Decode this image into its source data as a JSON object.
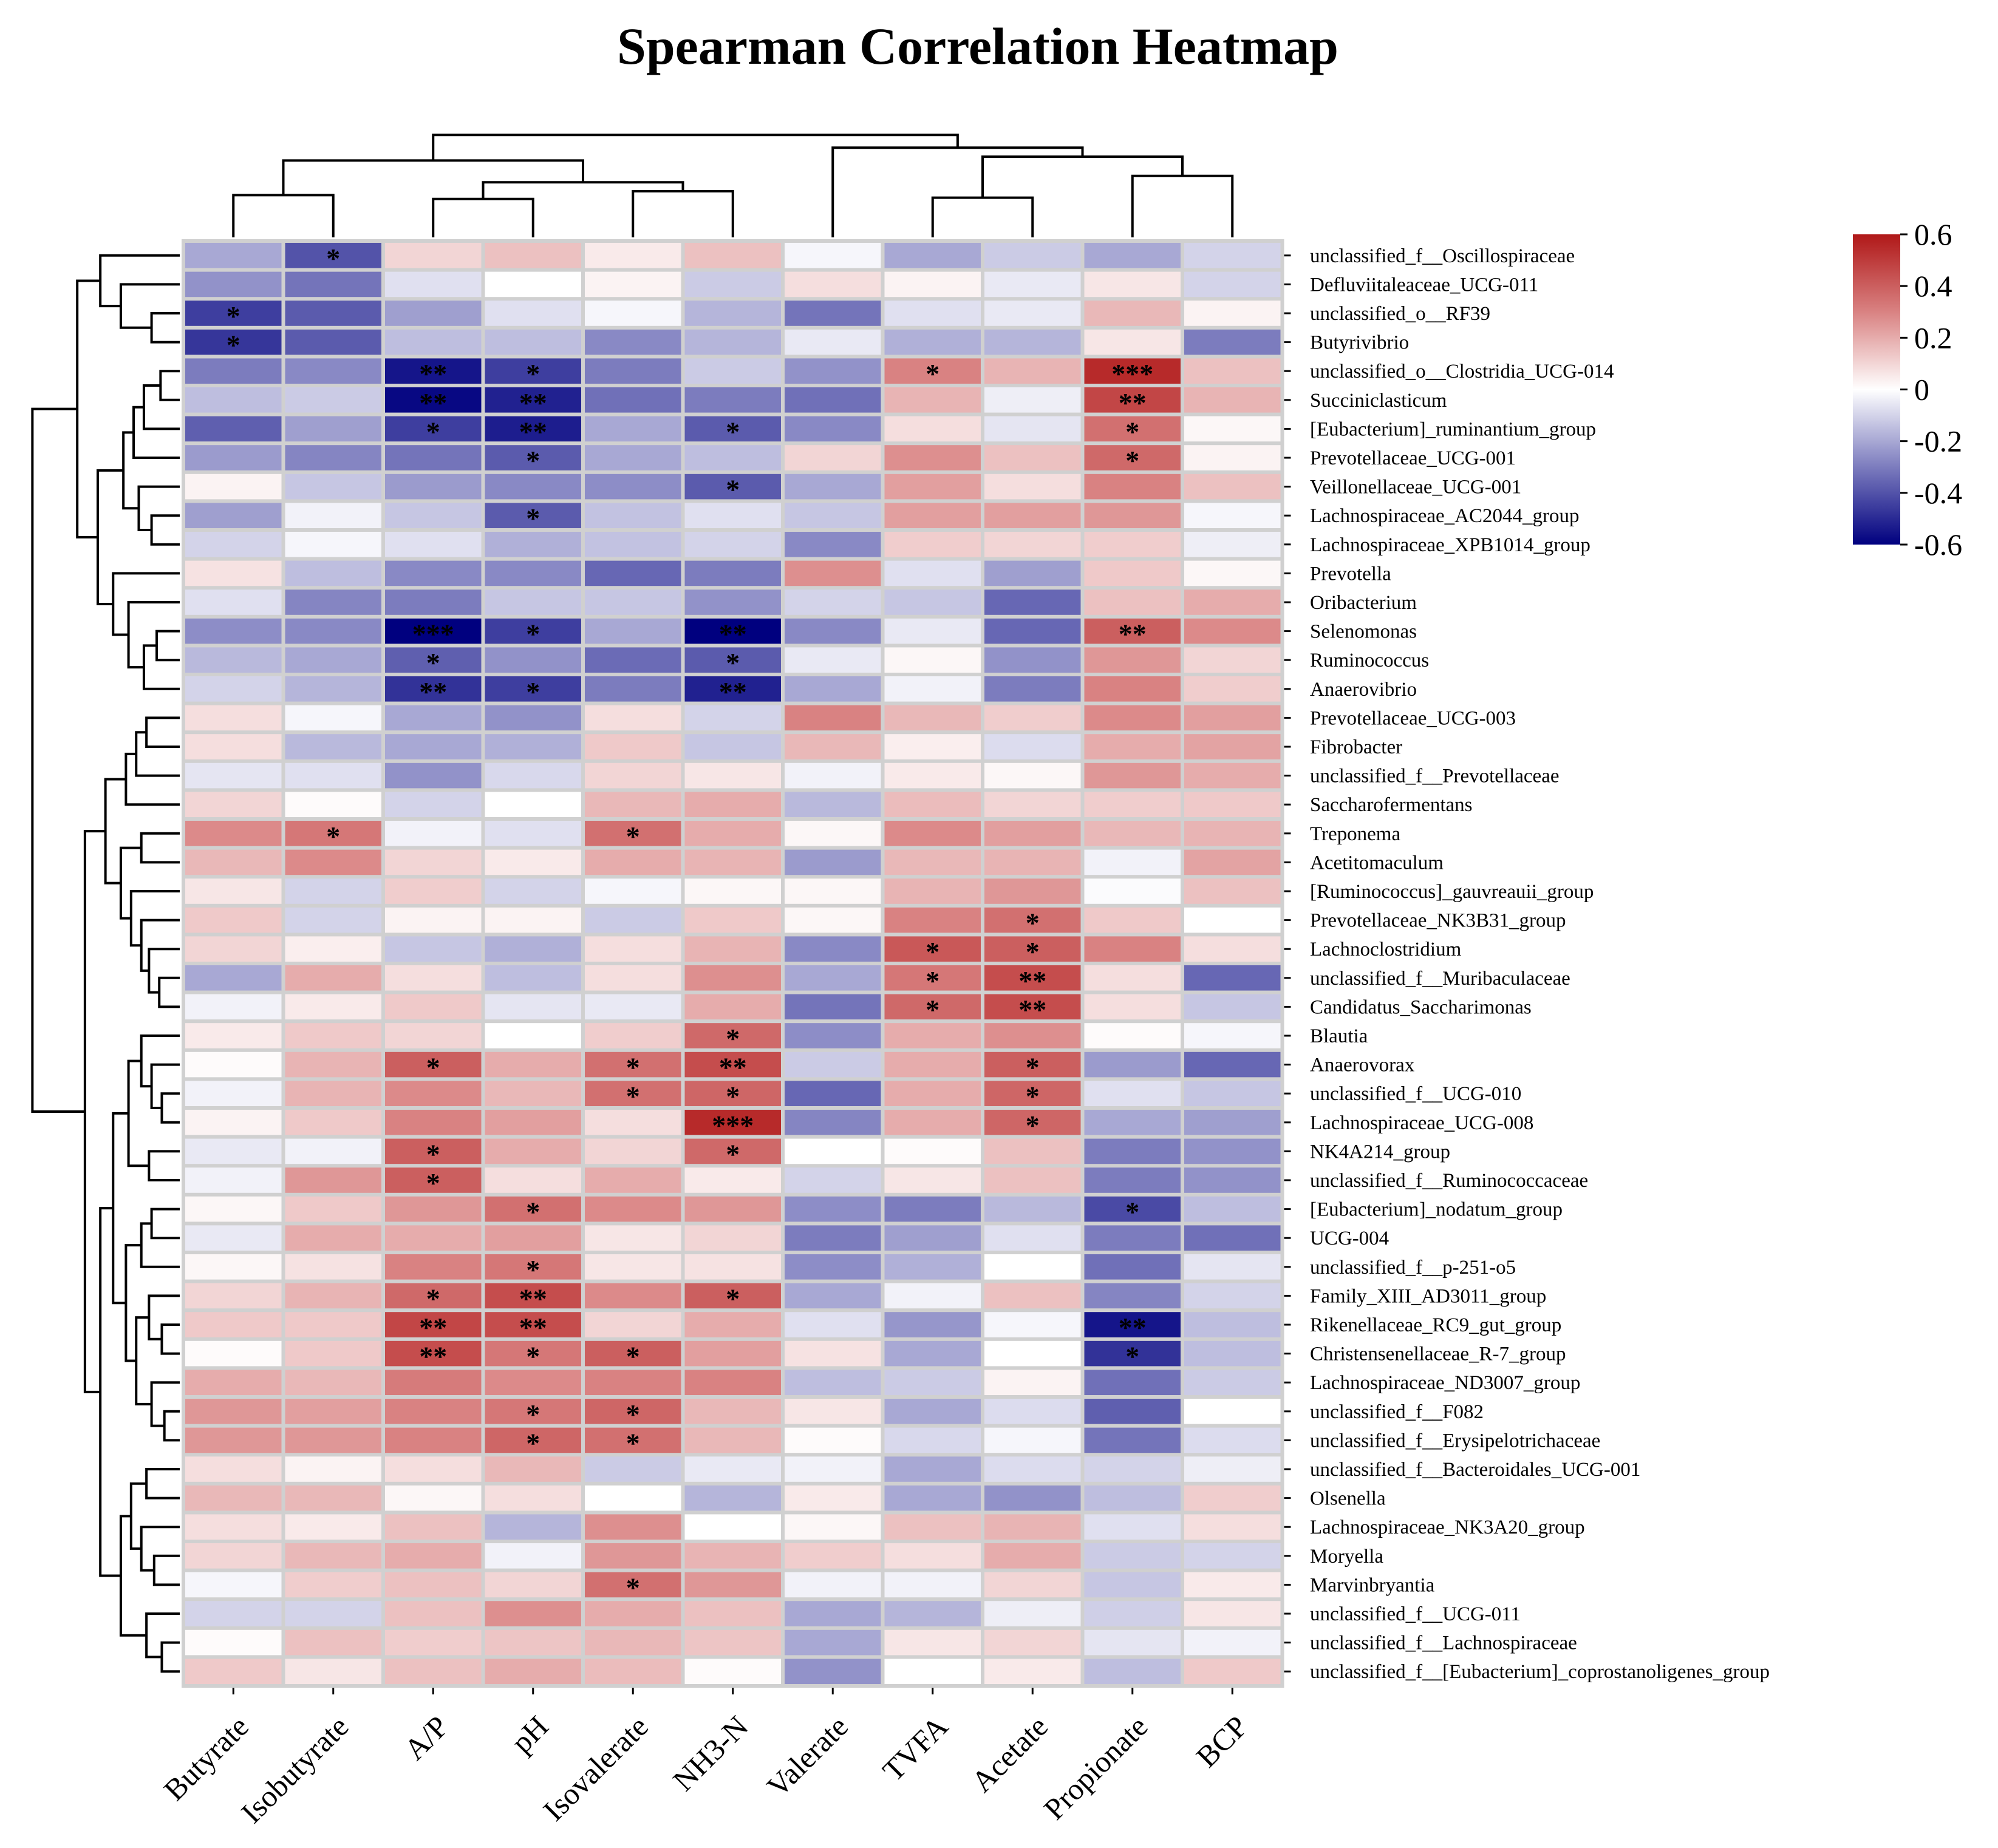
{
  "chart_data": {
    "type": "heatmap",
    "title": "Spearman Correlation Heatmap",
    "xlabel": "",
    "ylabel": "",
    "colorbar": {
      "range": [
        -0.6,
        0.6
      ],
      "ticks": [
        "0.6",
        "0.4",
        "0.2",
        "0",
        "-0.2",
        "-0.4",
        "-0.6"
      ],
      "tick_values": [
        0.6,
        0.4,
        0.2,
        0,
        -0.2,
        -0.4,
        -0.6
      ],
      "colors": {
        "low": "#00007f",
        "mid": "#ffffff",
        "high": "#b01818"
      }
    },
    "columns": [
      "Butyrate",
      "Isobutyrate",
      "A/P",
      "pH",
      "Isovalerate",
      "NH3-N",
      "Valerate",
      "TVFA",
      "Acetate",
      "Propionate",
      "BCP"
    ],
    "rows": [
      "unclassified_f__Oscillospiraceae",
      "Defluviitaleaceae_UCG-011",
      "unclassified_o__RF39",
      "Butyrivibrio",
      "unclassified_o__Clostridia_UCG-014",
      "Succiniclasticum",
      "[Eubacterium]_ruminantium_group",
      "Prevotellaceae_UCG-001",
      "Veillonellaceae_UCG-001",
      "Lachnospiraceae_AC2044_group",
      "Lachnospiraceae_XPB1014_group",
      "Prevotella",
      "Oribacterium",
      "Selenomonas",
      "Ruminococcus",
      "Anaerovibrio",
      "Prevotellaceae_UCG-003",
      "Fibrobacter",
      "unclassified_f__Prevotellaceae",
      "Saccharofermentans",
      "Treponema",
      "Acetitomaculum",
      "[Ruminococcus]_gauvreauii_group",
      "Prevotellaceae_NK3B31_group",
      "Lachnoclostridium",
      "unclassified_f__Muribaculaceae",
      "Candidatus_Saccharimonas",
      "Blautia",
      "Anaerovorax",
      "unclassified_f__UCG-010",
      "Lachnospiraceae_UCG-008",
      "NK4A214_group",
      "unclassified_f__Ruminococcaceae",
      "[Eubacterium]_nodatum_group",
      "UCG-004",
      "unclassified_f__p-251-o5",
      "Family_XIII_AD3011_group",
      "Rikenellaceae_RC9_gut_group",
      "Christensenellaceae_R-7_group",
      "Lachnospiraceae_ND3007_group",
      "unclassified_f__F082",
      "unclassified_f__Erysipelotrichaceae",
      "unclassified_f__Bacteroidales_UCG-001",
      "Olsenella",
      "Lachnospiraceae_NK3A20_group",
      "Moryella",
      "Marvinbryantia",
      "unclassified_f__UCG-011",
      "unclassified_f__Lachnospiraceae",
      "unclassified_f__[Eubacterium]_coprostanoligenes_group"
    ],
    "values": [
      [
        -0.2,
        -0.4,
        0.1,
        0.15,
        0.05,
        0.15,
        -0.02,
        -0.2,
        -0.12,
        -0.2,
        -0.1
      ],
      [
        -0.25,
        -0.32,
        -0.07,
        0,
        0.03,
        -0.12,
        0.08,
        0.03,
        -0.05,
        0.06,
        -0.1
      ],
      [
        -0.45,
        -0.38,
        -0.22,
        -0.07,
        -0.02,
        -0.17,
        -0.32,
        -0.07,
        -0.05,
        0.17,
        0.03
      ],
      [
        -0.47,
        -0.38,
        -0.15,
        -0.15,
        -0.27,
        -0.17,
        -0.05,
        -0.18,
        -0.17,
        0.06,
        -0.3
      ],
      [
        -0.3,
        -0.27,
        -0.55,
        -0.45,
        -0.3,
        -0.12,
        -0.25,
        0.3,
        0.18,
        0.55,
        0.15
      ],
      [
        -0.15,
        -0.12,
        -0.58,
        -0.52,
        -0.33,
        -0.3,
        -0.33,
        0.18,
        -0.04,
        0.47,
        0.18
      ],
      [
        -0.37,
        -0.22,
        -0.45,
        -0.53,
        -0.2,
        -0.38,
        -0.27,
        0.08,
        -0.06,
        0.35,
        0.02
      ],
      [
        -0.23,
        -0.28,
        -0.32,
        -0.38,
        -0.2,
        -0.15,
        0.1,
        0.27,
        0.15,
        0.37,
        0.03
      ],
      [
        0.03,
        -0.13,
        -0.23,
        -0.27,
        -0.26,
        -0.38,
        -0.2,
        0.23,
        0.08,
        0.3,
        0.15
      ],
      [
        -0.22,
        -0.03,
        -0.13,
        -0.38,
        -0.14,
        -0.07,
        -0.13,
        0.23,
        0.23,
        0.25,
        -0.02
      ],
      [
        -0.1,
        -0.02,
        -0.07,
        -0.18,
        -0.14,
        -0.1,
        -0.27,
        0.12,
        0.1,
        0.12,
        -0.04
      ],
      [
        0.07,
        -0.15,
        -0.27,
        -0.27,
        -0.35,
        -0.3,
        0.27,
        -0.07,
        -0.22,
        0.13,
        0.02
      ],
      [
        -0.07,
        -0.28,
        -0.3,
        -0.13,
        -0.13,
        -0.25,
        -0.1,
        -0.13,
        -0.35,
        0.15,
        0.2
      ],
      [
        -0.26,
        -0.27,
        -0.62,
        -0.45,
        -0.2,
        -0.6,
        -0.27,
        -0.05,
        -0.35,
        0.4,
        0.28
      ],
      [
        -0.16,
        -0.2,
        -0.37,
        -0.25,
        -0.34,
        -0.38,
        -0.05,
        0.02,
        -0.25,
        0.25,
        0.1
      ],
      [
        -0.1,
        -0.17,
        -0.48,
        -0.45,
        -0.3,
        -0.52,
        -0.2,
        -0.03,
        -0.3,
        0.3,
        0.12
      ],
      [
        0.08,
        -0.02,
        -0.2,
        -0.25,
        0.08,
        -0.1,
        0.3,
        0.17,
        0.12,
        0.28,
        0.23
      ],
      [
        0.08,
        -0.16,
        -0.2,
        -0.18,
        0.13,
        -0.13,
        0.17,
        0.04,
        -0.08,
        0.2,
        0.22
      ],
      [
        -0.06,
        -0.07,
        -0.25,
        -0.09,
        0.1,
        0.06,
        -0.03,
        0.05,
        0.02,
        0.25,
        0.2
      ],
      [
        0.1,
        0.01,
        -0.1,
        0,
        0.17,
        0.2,
        -0.16,
        0.16,
        0.1,
        0.12,
        0.13
      ],
      [
        0.28,
        0.33,
        -0.03,
        -0.07,
        0.35,
        0.2,
        0.02,
        0.28,
        0.23,
        0.17,
        0.18
      ],
      [
        0.17,
        0.28,
        0.1,
        0.05,
        0.2,
        0.18,
        -0.23,
        0.17,
        0.18,
        -0.03,
        0.22
      ],
      [
        0.06,
        -0.1,
        0.12,
        -0.1,
        -0.02,
        0.02,
        0.02,
        0.18,
        0.25,
        -0.01,
        0.15
      ],
      [
        0.13,
        -0.1,
        0.03,
        0.03,
        -0.12,
        0.13,
        0.02,
        0.3,
        0.35,
        0.13,
        0
      ],
      [
        0.1,
        0.04,
        -0.13,
        -0.18,
        0.08,
        0.18,
        -0.27,
        0.42,
        0.4,
        0.3,
        0.08
      ],
      [
        -0.2,
        0.2,
        0.08,
        -0.15,
        0.08,
        0.27,
        -0.2,
        0.33,
        0.45,
        0.08,
        -0.35
      ],
      [
        -0.03,
        0.05,
        0.13,
        -0.06,
        -0.05,
        0.2,
        -0.32,
        0.37,
        0.45,
        0.08,
        -0.13
      ],
      [
        0.05,
        0.13,
        0.1,
        0,
        0.12,
        0.37,
        -0.26,
        0.2,
        0.27,
        0.01,
        -0.02
      ],
      [
        0.01,
        0.18,
        0.4,
        0.2,
        0.35,
        0.45,
        -0.12,
        0.2,
        0.4,
        -0.23,
        -0.35
      ],
      [
        -0.03,
        0.18,
        0.28,
        0.17,
        0.35,
        0.38,
        -0.35,
        0.2,
        0.38,
        -0.07,
        -0.13
      ],
      [
        0.03,
        0.13,
        0.3,
        0.23,
        0.08,
        0.55,
        -0.28,
        0.2,
        0.38,
        -0.2,
        -0.22
      ],
      [
        -0.05,
        -0.03,
        0.4,
        0.2,
        0.1,
        0.37,
        0,
        0.01,
        0.15,
        -0.3,
        -0.25
      ],
      [
        -0.03,
        0.25,
        0.4,
        0.08,
        0.2,
        0.05,
        -0.1,
        0.06,
        0.15,
        -0.3,
        -0.25
      ],
      [
        0.02,
        0.13,
        0.25,
        0.35,
        0.28,
        0.25,
        -0.26,
        -0.3,
        -0.16,
        -0.42,
        -0.15
      ],
      [
        -0.05,
        0.2,
        0.2,
        0.23,
        0.06,
        0.1,
        -0.3,
        -0.22,
        -0.07,
        -0.3,
        -0.33
      ],
      [
        0.02,
        0.07,
        0.3,
        0.33,
        0.06,
        0.07,
        -0.26,
        -0.18,
        0,
        -0.33,
        -0.06
      ],
      [
        0.1,
        0.18,
        0.37,
        0.45,
        0.28,
        0.4,
        -0.2,
        -0.03,
        0.15,
        -0.28,
        -0.1
      ],
      [
        0.13,
        0.13,
        0.47,
        0.45,
        0.1,
        0.2,
        -0.07,
        -0.24,
        -0.02,
        -0.55,
        -0.15
      ],
      [
        0.01,
        0.13,
        0.45,
        0.33,
        0.4,
        0.23,
        0.07,
        -0.2,
        0,
        -0.48,
        -0.15
      ],
      [
        0.2,
        0.17,
        0.32,
        0.28,
        0.3,
        0.3,
        -0.15,
        -0.12,
        0.03,
        -0.33,
        -0.12
      ],
      [
        0.25,
        0.23,
        0.3,
        0.33,
        0.38,
        0.17,
        0.06,
        -0.2,
        -0.08,
        -0.37,
        0
      ],
      [
        0.25,
        0.25,
        0.3,
        0.38,
        0.35,
        0.17,
        0.01,
        -0.09,
        -0.02,
        -0.32,
        -0.08
      ],
      [
        0.08,
        0.03,
        0.08,
        0.17,
        -0.12,
        -0.05,
        -0.03,
        -0.2,
        -0.08,
        -0.1,
        -0.04
      ],
      [
        0.17,
        0.17,
        0.02,
        0.08,
        0,
        -0.17,
        0.05,
        -0.2,
        -0.25,
        -0.15,
        0.12
      ],
      [
        0.08,
        0.05,
        0.15,
        -0.17,
        0.27,
        0,
        0.02,
        0.15,
        0.18,
        -0.07,
        0.08
      ],
      [
        0.1,
        0.17,
        0.2,
        -0.03,
        0.25,
        0.18,
        0.12,
        0.08,
        0.2,
        -0.12,
        -0.1
      ],
      [
        -0.02,
        0.12,
        0.15,
        0.1,
        0.35,
        0.25,
        -0.03,
        -0.03,
        0.1,
        -0.13,
        0.05
      ],
      [
        -0.1,
        -0.1,
        0.15,
        0.27,
        0.2,
        0.15,
        -0.2,
        -0.17,
        -0.04,
        -0.11,
        0.06
      ],
      [
        0.01,
        0.15,
        0.12,
        0.14,
        0.17,
        0.14,
        -0.2,
        0.06,
        0.1,
        -0.06,
        -0.03
      ],
      [
        0.13,
        0.06,
        0.15,
        0.2,
        0.16,
        0.01,
        -0.25,
        0,
        0.05,
        -0.15,
        0.13
      ]
    ],
    "significance": [
      [
        "",
        "*",
        "",
        "",
        "",
        "",
        "",
        "",
        "",
        "",
        ""
      ],
      [
        "",
        "",
        "",
        "",
        "",
        "",
        "",
        "",
        "",
        "",
        ""
      ],
      [
        "*",
        "",
        "",
        "",
        "",
        "",
        "",
        "",
        "",
        "",
        ""
      ],
      [
        "*",
        "",
        "",
        "",
        "",
        "",
        "",
        "",
        "",
        "",
        ""
      ],
      [
        "",
        "",
        "**",
        "*",
        "",
        "",
        "",
        "*",
        "",
        "***",
        ""
      ],
      [
        "",
        "",
        "**",
        "**",
        "",
        "",
        "",
        "",
        "",
        "**",
        ""
      ],
      [
        "",
        "",
        "*",
        "**",
        "",
        "*",
        "",
        "",
        "",
        "*",
        ""
      ],
      [
        "",
        "",
        "",
        "*",
        "",
        "",
        "",
        "",
        "",
        "*",
        ""
      ],
      [
        "",
        "",
        "",
        "",
        "",
        "*",
        "",
        "",
        "",
        "",
        ""
      ],
      [
        "",
        "",
        "",
        "*",
        "",
        "",
        "",
        "",
        "",
        "",
        ""
      ],
      [
        "",
        "",
        "",
        "",
        "",
        "",
        "",
        "",
        "",
        "",
        ""
      ],
      [
        "",
        "",
        "",
        "",
        "",
        "",
        "",
        "",
        "",
        "",
        ""
      ],
      [
        "",
        "",
        "",
        "",
        "",
        "",
        "",
        "",
        "",
        "",
        ""
      ],
      [
        "",
        "",
        "***",
        "*",
        "",
        "**",
        "",
        "",
        "",
        "**",
        ""
      ],
      [
        "",
        "",
        "*",
        "",
        "",
        "*",
        "",
        "",
        "",
        "",
        ""
      ],
      [
        "",
        "",
        "**",
        "*",
        "",
        "**",
        "",
        "",
        "",
        "",
        ""
      ],
      [
        "",
        "",
        "",
        "",
        "",
        "",
        "",
        "",
        "",
        "",
        ""
      ],
      [
        "",
        "",
        "",
        "",
        "",
        "",
        "",
        "",
        "",
        "",
        ""
      ],
      [
        "",
        "",
        "",
        "",
        "",
        "",
        "",
        "",
        "",
        "",
        ""
      ],
      [
        "",
        "",
        "",
        "",
        "",
        "",
        "",
        "",
        "",
        "",
        ""
      ],
      [
        "",
        "*",
        "",
        "",
        "*",
        "",
        "",
        "",
        "",
        "",
        ""
      ],
      [
        "",
        "",
        "",
        "",
        "",
        "",
        "",
        "",
        "",
        "",
        ""
      ],
      [
        "",
        "",
        "",
        "",
        "",
        "",
        "",
        "",
        "",
        "",
        ""
      ],
      [
        "",
        "",
        "",
        "",
        "",
        "",
        "",
        "",
        "*",
        "",
        ""
      ],
      [
        "",
        "",
        "",
        "",
        "",
        "",
        "",
        "*",
        "*",
        "",
        ""
      ],
      [
        "",
        "",
        "",
        "",
        "",
        "",
        "",
        "*",
        "**",
        "",
        ""
      ],
      [
        "",
        "",
        "",
        "",
        "",
        "",
        "",
        "*",
        "**",
        "",
        ""
      ],
      [
        "",
        "",
        "",
        "",
        "",
        "*",
        "",
        "",
        "",
        "",
        ""
      ],
      [
        "",
        "",
        "*",
        "",
        "*",
        "**",
        "",
        "",
        "*",
        "",
        ""
      ],
      [
        "",
        "",
        "",
        "",
        "*",
        "*",
        "",
        "",
        "*",
        "",
        ""
      ],
      [
        "",
        "",
        "",
        "",
        "",
        "***",
        "",
        "",
        "*",
        "",
        ""
      ],
      [
        "",
        "",
        "*",
        "",
        "",
        "*",
        "",
        "",
        "",
        "",
        ""
      ],
      [
        "",
        "",
        "*",
        "",
        "",
        "",
        "",
        "",
        "",
        "",
        ""
      ],
      [
        "",
        "",
        "",
        "*",
        "",
        "",
        "",
        "",
        "",
        "*",
        ""
      ],
      [
        "",
        "",
        "",
        "",
        "",
        "",
        "",
        "",
        "",
        "",
        ""
      ],
      [
        "",
        "",
        "",
        "*",
        "",
        "",
        "",
        "",
        "",
        "",
        ""
      ],
      [
        "",
        "",
        "*",
        "**",
        "",
        "*",
        "",
        "",
        "",
        "",
        ""
      ],
      [
        "",
        "",
        "**",
        "**",
        "",
        "",
        "",
        "",
        "",
        "**",
        ""
      ],
      [
        "",
        "",
        "**",
        "*",
        "*",
        "",
        "",
        "",
        "",
        "*",
        ""
      ],
      [
        "",
        "",
        "",
        "",
        "",
        "",
        "",
        "",
        "",
        "",
        ""
      ],
      [
        "",
        "",
        "",
        "*",
        "*",
        "",
        "",
        "",
        "",
        "",
        ""
      ],
      [
        "",
        "",
        "",
        "*",
        "*",
        "",
        "",
        "",
        "",
        "",
        ""
      ],
      [
        "",
        "",
        "",
        "",
        "",
        "",
        "",
        "",
        "",
        "",
        ""
      ],
      [
        "",
        "",
        "",
        "",
        "",
        "",
        "",
        "",
        "",
        "",
        ""
      ],
      [
        "",
        "",
        "",
        "",
        "",
        "",
        "",
        "",
        "",
        "",
        ""
      ],
      [
        "",
        "",
        "",
        "",
        "",
        "",
        "",
        "",
        "",
        "",
        ""
      ],
      [
        "",
        "",
        "",
        "",
        "*",
        "",
        "",
        "",
        "",
        "",
        ""
      ],
      [
        "",
        "",
        "",
        "",
        "",
        "",
        "",
        "",
        "",
        "",
        ""
      ],
      [
        "",
        "",
        "",
        "",
        "",
        "",
        "",
        "",
        "",
        "",
        ""
      ],
      [
        "",
        "",
        "",
        "",
        "",
        "",
        "",
        "",
        "",
        "",
        ""
      ]
    ],
    "legend": "right"
  }
}
